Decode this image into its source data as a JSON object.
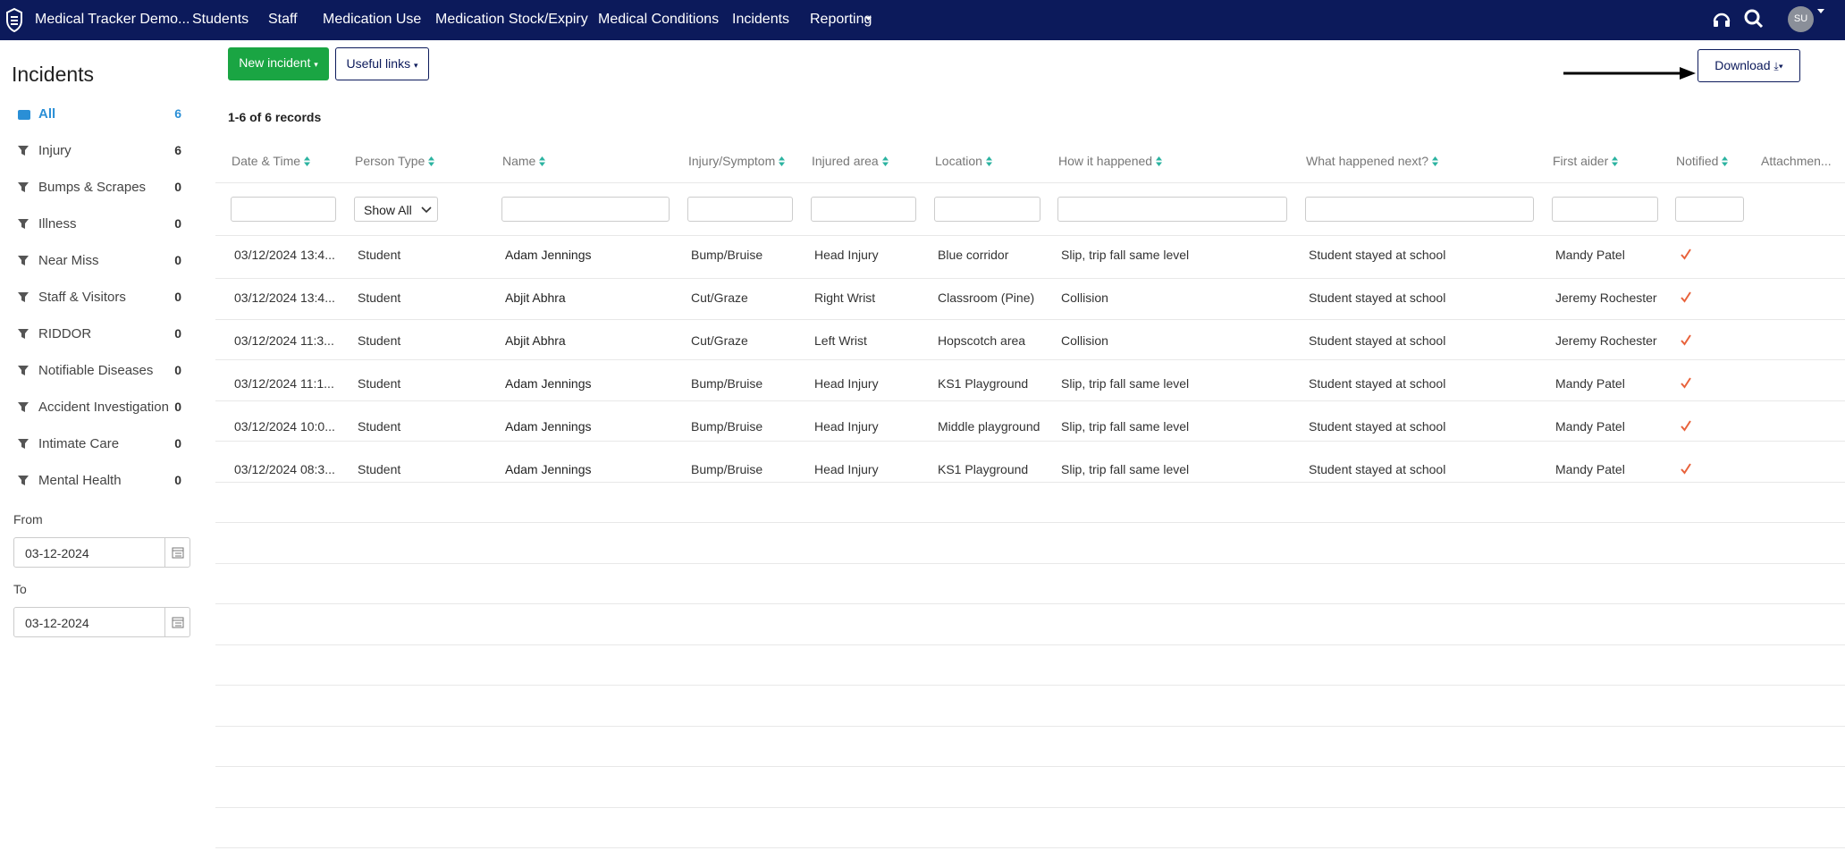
{
  "navbar": {
    "brand": "Medical Tracker Demo...",
    "items": [
      "Students",
      "Staff",
      "Medication Use",
      "Medication Stock/Expiry",
      "Medical Conditions",
      "Incidents",
      "Reporting"
    ],
    "avatar": "SU"
  },
  "sidebar": {
    "title": "Incidents",
    "filters": [
      {
        "label": "All",
        "count": 6
      },
      {
        "label": "Injury",
        "count": 6
      },
      {
        "label": "Bumps & Scrapes",
        "count": 0
      },
      {
        "label": "Illness",
        "count": 0
      },
      {
        "label": "Near Miss",
        "count": 0
      },
      {
        "label": "Staff & Visitors",
        "count": 0
      },
      {
        "label": "RIDDOR",
        "count": 0
      },
      {
        "label": "Notifiable Diseases",
        "count": 0
      },
      {
        "label": "Accident Investigation",
        "count": 0
      },
      {
        "label": "Intimate Care",
        "count": 0
      },
      {
        "label": "Mental Health",
        "count": 0
      }
    ],
    "from_label": "From",
    "from": "03-12-2024",
    "to_label": "To",
    "to": "03-12-2024"
  },
  "toolbar": {
    "new_incident": "New incident",
    "useful_links": "Useful links",
    "download": "Download",
    "records": "1-6 of 6 records"
  },
  "table": {
    "columns": [
      "Date & Time",
      "Person Type",
      "Name",
      "Injury/Symptom",
      "Injured area",
      "Location",
      "How it happened",
      "What happened next?",
      "First aider",
      "Notified",
      "Attachmen..."
    ],
    "person_type_filter": "Show All",
    "rows": [
      [
        "03/12/2024 13:4...",
        "Student",
        "Adam Jennings",
        "Bump/Bruise",
        "Head Injury",
        "Blue corridor",
        "Slip, trip fall same level",
        "Student stayed at school",
        "Mandy Patel"
      ],
      [
        "03/12/2024 13:4...",
        "Student",
        "Abjit Abhra",
        "Cut/Graze",
        "Right Wrist",
        "Classroom (Pine)",
        "Collision",
        "Student stayed at school",
        "Jeremy Rochester"
      ],
      [
        "03/12/2024 11:3...",
        "Student",
        "Abjit Abhra",
        "Cut/Graze",
        "Left Wrist",
        "Hopscotch area",
        "Collision",
        "Student stayed at school",
        "Jeremy Rochester"
      ],
      [
        "03/12/2024 11:1...",
        "Student",
        "Adam Jennings",
        "Bump/Bruise",
        "Head Injury",
        "KS1 Playground",
        "Slip, trip fall same level",
        "Student stayed at school",
        "Mandy Patel"
      ],
      [
        "03/12/2024 10:0...",
        "Student",
        "Adam Jennings",
        "Bump/Bruise",
        "Head Injury",
        "Middle playground",
        "Slip, trip fall same level",
        "Student stayed at school",
        "Mandy Patel"
      ],
      [
        "03/12/2024 08:3...",
        "Student",
        "Adam Jennings",
        "Bump/Bruise",
        "Head Injury",
        "KS1 Playground",
        "Slip, trip fall same level",
        "Student stayed at school",
        "Mandy Patel"
      ]
    ]
  }
}
